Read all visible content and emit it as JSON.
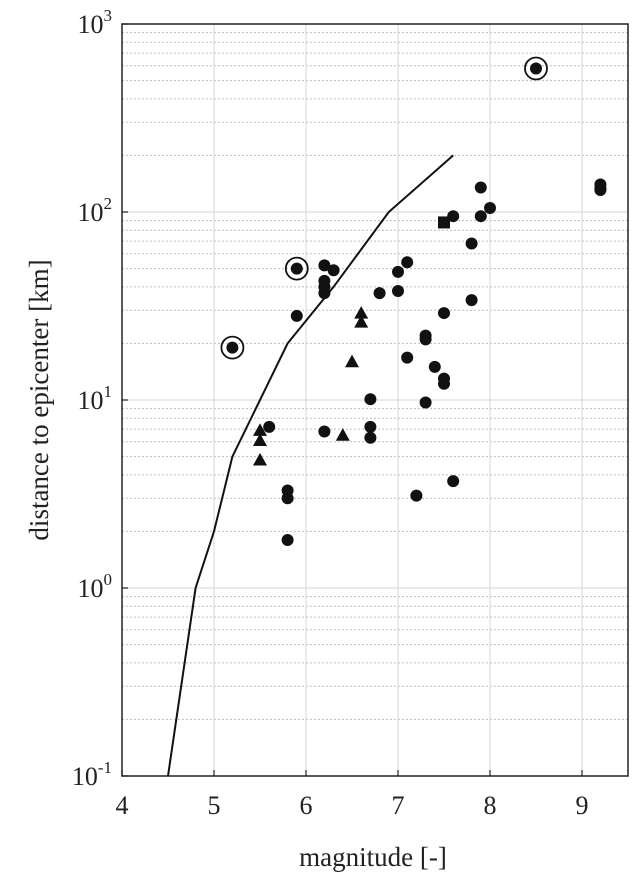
{
  "chart_data": {
    "type": "scatter",
    "title": "",
    "xlabel": "magnitude [-]",
    "ylabel": "distance to epicenter [km]",
    "xlim": [
      4,
      9.5
    ],
    "ylim": [
      0.1,
      1000
    ],
    "yscale": "log",
    "grid": "on (major and minor dotted)",
    "legend": "none",
    "x_ticks": [
      {
        "value": 4,
        "label": "4"
      },
      {
        "value": 5,
        "label": "5"
      },
      {
        "value": 6,
        "label": "6"
      },
      {
        "value": 7,
        "label": "7"
      },
      {
        "value": 8,
        "label": "8"
      },
      {
        "value": 9,
        "label": "9"
      }
    ],
    "y_ticks": [
      {
        "value": 0.1,
        "base": "10",
        "exp": "-1"
      },
      {
        "value": 1,
        "base": "10",
        "exp": "0"
      },
      {
        "value": 10,
        "base": "10",
        "exp": "1"
      },
      {
        "value": 100,
        "base": "10",
        "exp": "2"
      },
      {
        "value": 1000,
        "base": "10",
        "exp": "3"
      }
    ],
    "series": [
      {
        "marker": "circle",
        "points": [
          [
            5.6,
            7.2
          ],
          [
            5.8,
            3.3
          ],
          [
            5.8,
            3.0
          ],
          [
            5.8,
            1.8
          ],
          [
            5.9,
            28
          ],
          [
            6.2,
            52
          ],
          [
            6.2,
            43
          ],
          [
            6.2,
            40
          ],
          [
            6.2,
            37
          ],
          [
            6.2,
            6.8
          ],
          [
            6.3,
            49
          ],
          [
            6.7,
            10.1
          ],
          [
            6.7,
            7.2
          ],
          [
            6.7,
            6.3
          ],
          [
            6.8,
            37
          ],
          [
            7.0,
            48
          ],
          [
            7.0,
            38
          ],
          [
            7.1,
            54
          ],
          [
            7.1,
            16.8
          ],
          [
            7.2,
            3.1
          ],
          [
            7.3,
            22
          ],
          [
            7.3,
            21
          ],
          [
            7.3,
            9.7
          ],
          [
            7.4,
            15
          ],
          [
            7.5,
            29
          ],
          [
            7.5,
            13
          ],
          [
            7.5,
            12.2
          ],
          [
            7.6,
            95
          ],
          [
            7.6,
            3.7
          ],
          [
            7.8,
            68
          ],
          [
            7.8,
            34
          ],
          [
            7.9,
            135
          ],
          [
            7.9,
            95
          ],
          [
            8.0,
            105
          ],
          [
            9.2,
            140
          ],
          [
            9.2,
            134
          ],
          [
            9.2,
            131
          ]
        ]
      },
      {
        "marker": "circled-dot",
        "points": [
          [
            5.2,
            19
          ],
          [
            5.9,
            50
          ],
          [
            8.5,
            580
          ]
        ]
      },
      {
        "marker": "triangle",
        "points": [
          [
            5.5,
            6.9
          ],
          [
            5.5,
            6.1
          ],
          [
            5.5,
            4.8
          ],
          [
            6.4,
            6.5
          ],
          [
            6.5,
            16
          ],
          [
            6.6,
            29
          ],
          [
            6.6,
            26
          ]
        ]
      },
      {
        "marker": "square",
        "points": [
          [
            7.5,
            88
          ]
        ]
      },
      {
        "type": "line",
        "points": [
          [
            4.5,
            0.1
          ],
          [
            4.8,
            1.0
          ],
          [
            5.0,
            2.0
          ],
          [
            5.2,
            5.0
          ],
          [
            5.8,
            20
          ],
          [
            6.3,
            40
          ],
          [
            6.9,
            100
          ],
          [
            7.6,
            200
          ]
        ]
      }
    ]
  }
}
